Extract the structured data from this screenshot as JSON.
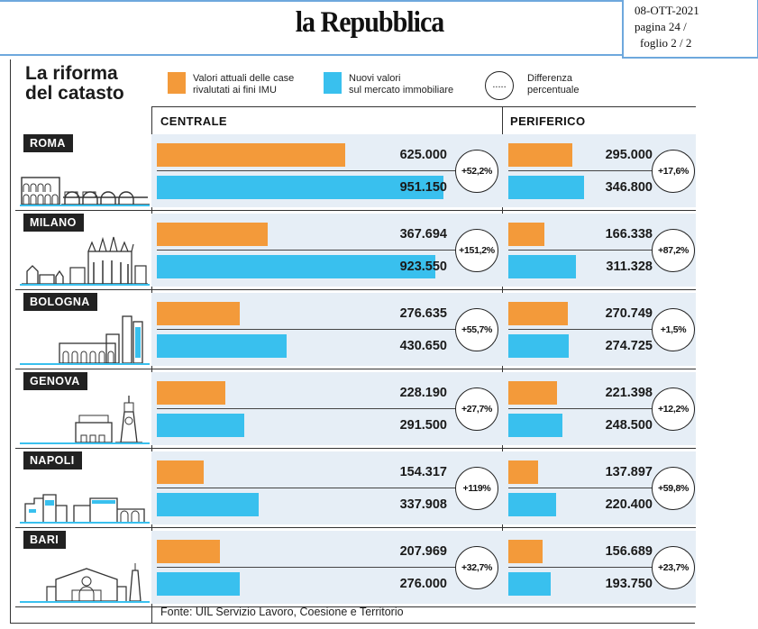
{
  "header": {
    "masthead": "la Repubblica",
    "date": "08-OTT-2021",
    "page": "pagina 24 /",
    "sheet": "foglio  2 / 2"
  },
  "infographic": {
    "title_line1": "La riforma",
    "title_line2": "del catasto",
    "legend": {
      "current_line1": "Valori attuali delle case",
      "current_line2": "rivalutati ai fini IMU",
      "new_line1": "Nuovi valori",
      "new_line2": "sul mercato immobiliare",
      "diff_symbol": ".....",
      "diff_line1": "Differenza",
      "diff_line2": "percentuale"
    },
    "column_central": "CENTRALE",
    "column_peripheral": "PERIFERICO",
    "source": "Fonte: UIL Servizio Lavoro, Coesione e Territorio"
  },
  "colors": {
    "current": "#f39a3a",
    "new": "#39c0ee",
    "row_shade": "#e6eef6",
    "accent_line": "#6ea8dd"
  },
  "chart_data": {
    "type": "bar",
    "title": "La riforma del catasto",
    "series": [
      {
        "name": "Valori attuali delle case rivalutati ai fini IMU"
      },
      {
        "name": "Nuovi valori sul mercato immobiliare"
      }
    ],
    "cities": [
      {
        "name": "ROMA",
        "icon": "colosseum-icon",
        "central": {
          "current": 625000,
          "new": 951150,
          "current_label": "625.000",
          "new_label": "951.150",
          "diff": "+52,2%"
        },
        "peripheral": {
          "current": 295000,
          "new": 346800,
          "current_label": "295.000",
          "new_label": "346.800",
          "diff": "+17,6%"
        }
      },
      {
        "name": "MILANO",
        "icon": "duomo-milano-icon",
        "central": {
          "current": 367694,
          "new": 923550,
          "current_label": "367.694",
          "new_label": "923.550",
          "diff": "+151,2%"
        },
        "peripheral": {
          "current": 166338,
          "new": 311328,
          "current_label": "166.338",
          "new_label": "311.328",
          "diff": "+87,2%"
        }
      },
      {
        "name": "BOLOGNA",
        "icon": "bologna-towers-icon",
        "central": {
          "current": 276635,
          "new": 430650,
          "current_label": "276.635",
          "new_label": "430.650",
          "diff": "+55,7%"
        },
        "peripheral": {
          "current": 270749,
          "new": 274725,
          "current_label": "270.749",
          "new_label": "274.725",
          "diff": "+1,5%"
        }
      },
      {
        "name": "GENOVA",
        "icon": "lanterna-genova-icon",
        "central": {
          "current": 228190,
          "new": 291500,
          "current_label": "228.190",
          "new_label": "291.500",
          "diff": "+27,7%"
        },
        "peripheral": {
          "current": 221398,
          "new": 248500,
          "current_label": "221.398",
          "new_label": "248.500",
          "diff": "+12,2%"
        }
      },
      {
        "name": "NAPOLI",
        "icon": "napoli-skyline-icon",
        "central": {
          "current": 154317,
          "new": 337908,
          "current_label": "154.317",
          "new_label": "337.908",
          "diff": "+119%"
        },
        "peripheral": {
          "current": 137897,
          "new": 220400,
          "current_label": "137.897",
          "new_label": "220.400",
          "diff": "+59,8%"
        }
      },
      {
        "name": "BARI",
        "icon": "bari-cathedral-icon",
        "central": {
          "current": 207969,
          "new": 276000,
          "current_label": "207.969",
          "new_label": "276.000",
          "diff": "+32,7%"
        },
        "peripheral": {
          "current": 156689,
          "new": 193750,
          "current_label": "156.689",
          "new_label": "193.750",
          "diff": "+23,7%"
        }
      }
    ]
  }
}
